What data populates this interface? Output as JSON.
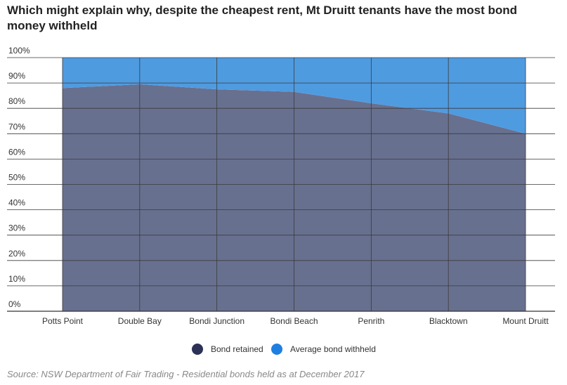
{
  "chart_data": {
    "type": "area",
    "title": "Which might explain why, despite the cheapest rent, Mt Druitt tenants have the most bond money withheld",
    "categories": [
      "Potts Point",
      "Double Bay",
      "Bondi Junction",
      "Bondi Beach",
      "Penrith",
      "Blacktown",
      "Mount Druitt"
    ],
    "series": [
      {
        "name": "Bond retained",
        "color": "#68708f",
        "values": [
          88,
          89.5,
          87.5,
          86.5,
          82,
          78,
          70
        ]
      },
      {
        "name": "Average bond withheld",
        "color": "#4f9be0",
        "values": [
          12,
          10.5,
          12.5,
          13.5,
          18,
          22,
          30
        ]
      }
    ],
    "stacked": true,
    "ylim": [
      0,
      100
    ],
    "yticks": [
      "0%",
      "10%",
      "20%",
      "30%",
      "40%",
      "50%",
      "60%",
      "70%",
      "80%",
      "90%",
      "100%"
    ],
    "grid": true,
    "legend_position": "bottom",
    "legend_marker_colors": [
      "#2b3157",
      "#1f7fe0"
    ],
    "source": "Source: NSW Department of Fair Trading - Residential bonds held as at December 2017"
  }
}
